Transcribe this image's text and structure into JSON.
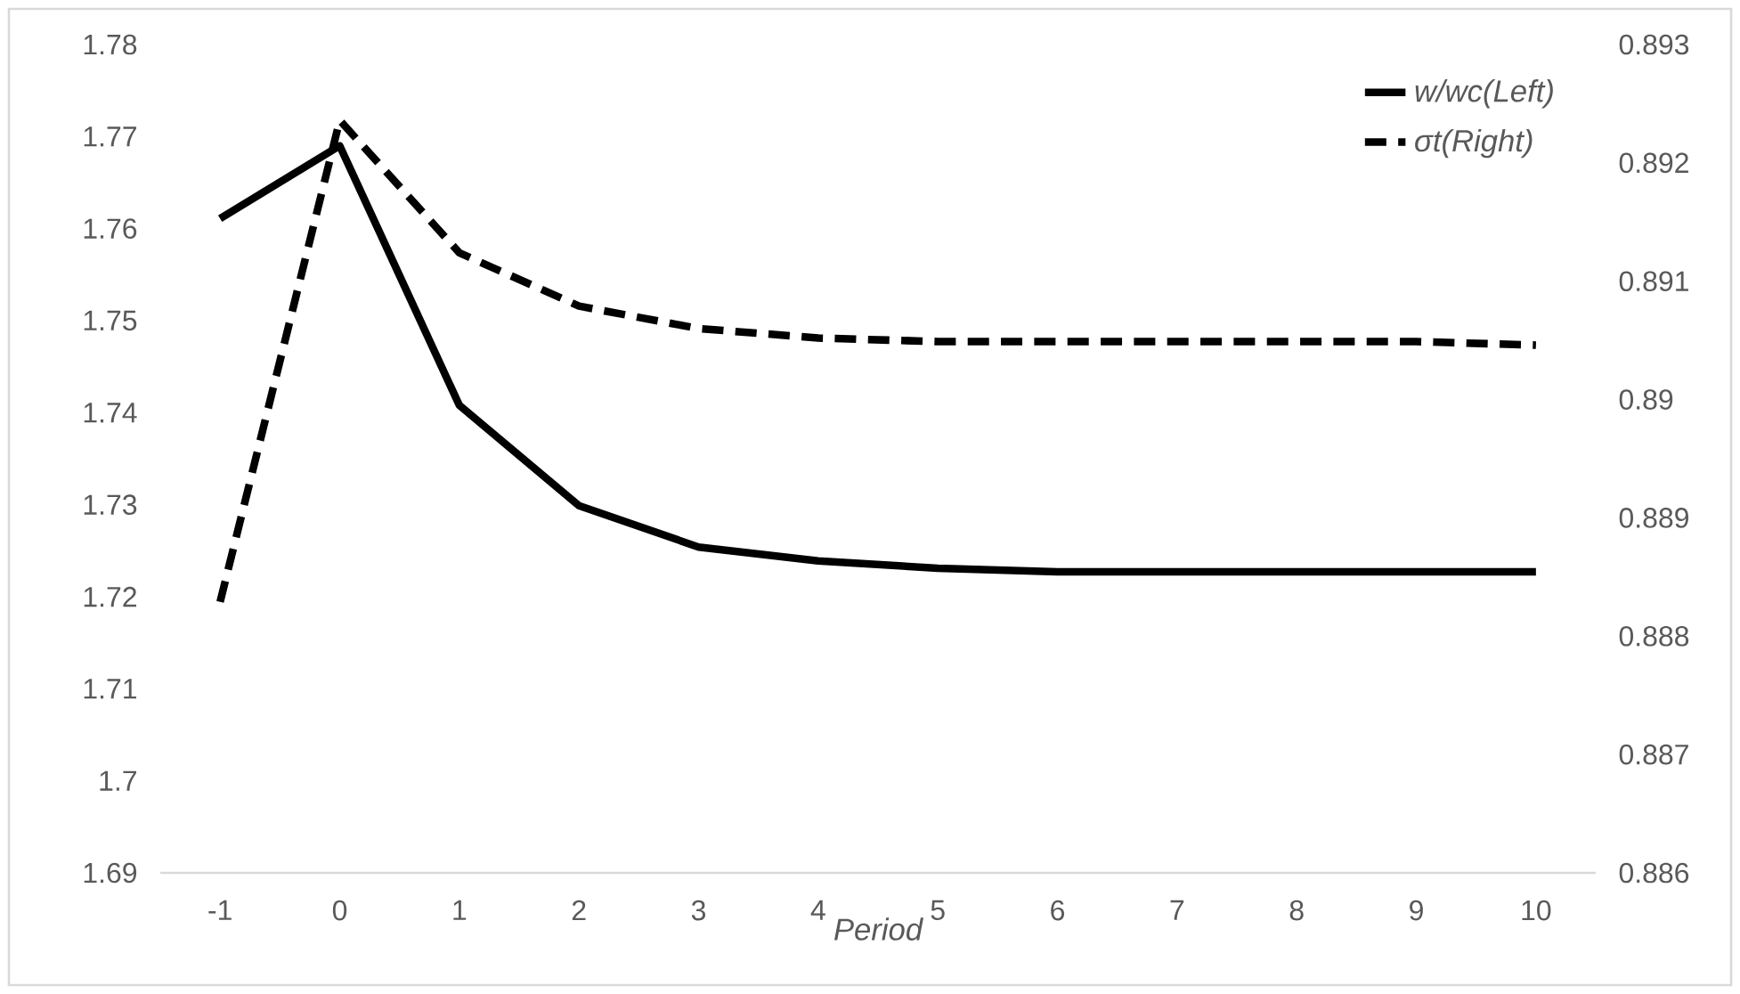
{
  "chart_data": {
    "type": "line",
    "xlabel": "Period",
    "categories": [
      "-1",
      "0",
      "1",
      "2",
      "3",
      "4",
      "5",
      "6",
      "7",
      "8",
      "9",
      "10"
    ],
    "series": [
      {
        "name": "w/wc(Left)",
        "color": "#000000",
        "line_style": "solid",
        "values": [
          1.7611,
          1.769,
          1.7408,
          1.7299,
          1.7254,
          1.7239,
          1.7231,
          1.7227,
          1.7227,
          1.7227,
          1.7227,
          1.7227
        ]
      },
      {
        "name": "σt(Right)",
        "color": "#000000",
        "line_style": "dashed",
        "axis": "y2",
        "values": [
          0.88829,
          0.89236,
          0.89124,
          0.89079,
          0.8906,
          0.89052,
          0.89049,
          0.89049,
          0.89049,
          0.89049,
          0.89049,
          0.89046
        ]
      }
    ],
    "ylim": [
      1.69,
      1.78
    ],
    "yticks": [
      1.69,
      1.7,
      1.71,
      1.72,
      1.73,
      1.74,
      1.75,
      1.76,
      1.77,
      1.78
    ],
    "y2lim": [
      0.886,
      0.893
    ],
    "y2ticks": [
      0.886,
      0.887,
      0.888,
      0.889,
      0.89,
      0.891,
      0.892,
      0.893
    ],
    "grid": false,
    "legend": "top right",
    "marker": "none"
  }
}
